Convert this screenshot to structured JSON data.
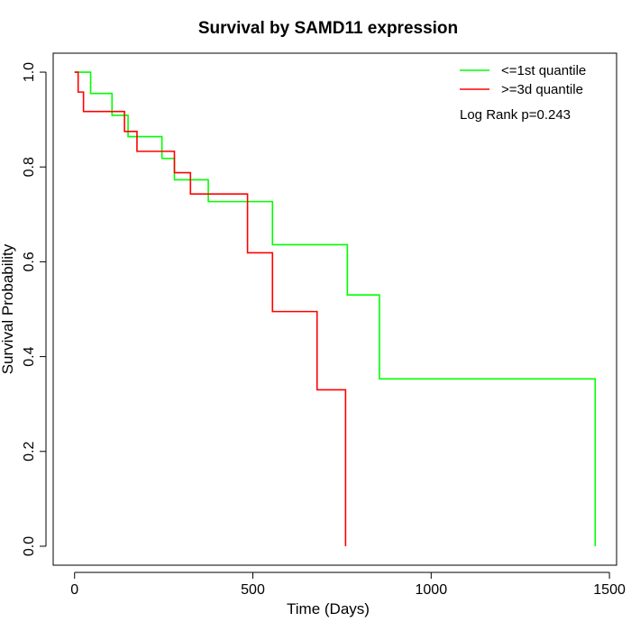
{
  "chart_data": {
    "type": "line",
    "subtype": "kaplan-meier-step",
    "title": "Survival by SAMD11 expression",
    "xlabel": "Time (Days)",
    "ylabel": "Survival Probability",
    "xlim": [
      -60,
      1520
    ],
    "ylim": [
      -0.04,
      1.04
    ],
    "xticks": [
      0,
      500,
      1000,
      1500
    ],
    "xtick_labels": [
      "0",
      "500",
      "1000",
      "1500"
    ],
    "yticks": [
      0.0,
      0.2,
      0.4,
      0.6,
      0.8,
      1.0
    ],
    "ytick_labels": [
      "0.0",
      "0.2",
      "0.4",
      "0.6",
      "0.8",
      "1.0"
    ],
    "grid": false,
    "legend_position": "top-right",
    "annotation": "Log Rank p=0.243",
    "series": [
      {
        "name": "<=1st quantile",
        "color": "#00ff00",
        "x": [
          0,
          45,
          105,
          150,
          245,
          280,
          375,
          555,
          765,
          855,
          1460
        ],
        "y": [
          1.0,
          0.955,
          0.909,
          0.864,
          0.818,
          0.773,
          0.727,
          0.636,
          0.53,
          0.353,
          0.0
        ]
      },
      {
        "name": ">=3d quantile",
        "color": "#ff0000",
        "x": [
          0,
          10,
          25,
          140,
          175,
          280,
          325,
          485,
          555,
          680,
          760
        ],
        "y": [
          1.0,
          0.958,
          0.917,
          0.875,
          0.833,
          0.788,
          0.743,
          0.619,
          0.495,
          0.33,
          0.0
        ]
      }
    ]
  }
}
